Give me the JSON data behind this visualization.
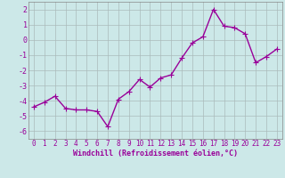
{
  "x": [
    0,
    1,
    2,
    3,
    4,
    5,
    6,
    7,
    8,
    9,
    10,
    11,
    12,
    13,
    14,
    15,
    16,
    17,
    18,
    19,
    20,
    21,
    22,
    23
  ],
  "y": [
    -4.4,
    -4.1,
    -3.7,
    -4.5,
    -4.6,
    -4.6,
    -4.7,
    -5.7,
    -3.9,
    -3.4,
    -2.6,
    -3.1,
    -2.5,
    -2.3,
    -1.2,
    -0.2,
    0.2,
    2.0,
    0.9,
    0.8,
    0.4,
    -1.5,
    -1.1,
    -0.6
  ],
  "line_color": "#990099",
  "marker": "+",
  "marker_size": 4,
  "linewidth": 1.0,
  "bg_color": "#cce8e8",
  "grid_color": "#aabbbb",
  "xlabel": "Windchill (Refroidissement éolien,°C)",
  "xlim": [
    -0.5,
    23.5
  ],
  "ylim": [
    -6.5,
    2.5
  ],
  "yticks": [
    -6,
    -5,
    -4,
    -3,
    -2,
    -1,
    0,
    1,
    2
  ],
  "xticks": [
    0,
    1,
    2,
    3,
    4,
    5,
    6,
    7,
    8,
    9,
    10,
    11,
    12,
    13,
    14,
    15,
    16,
    17,
    18,
    19,
    20,
    21,
    22,
    23
  ],
  "tick_color": "#990099",
  "label_color": "#990099",
  "font_size": 5.5,
  "xlabel_font_size": 6.0
}
